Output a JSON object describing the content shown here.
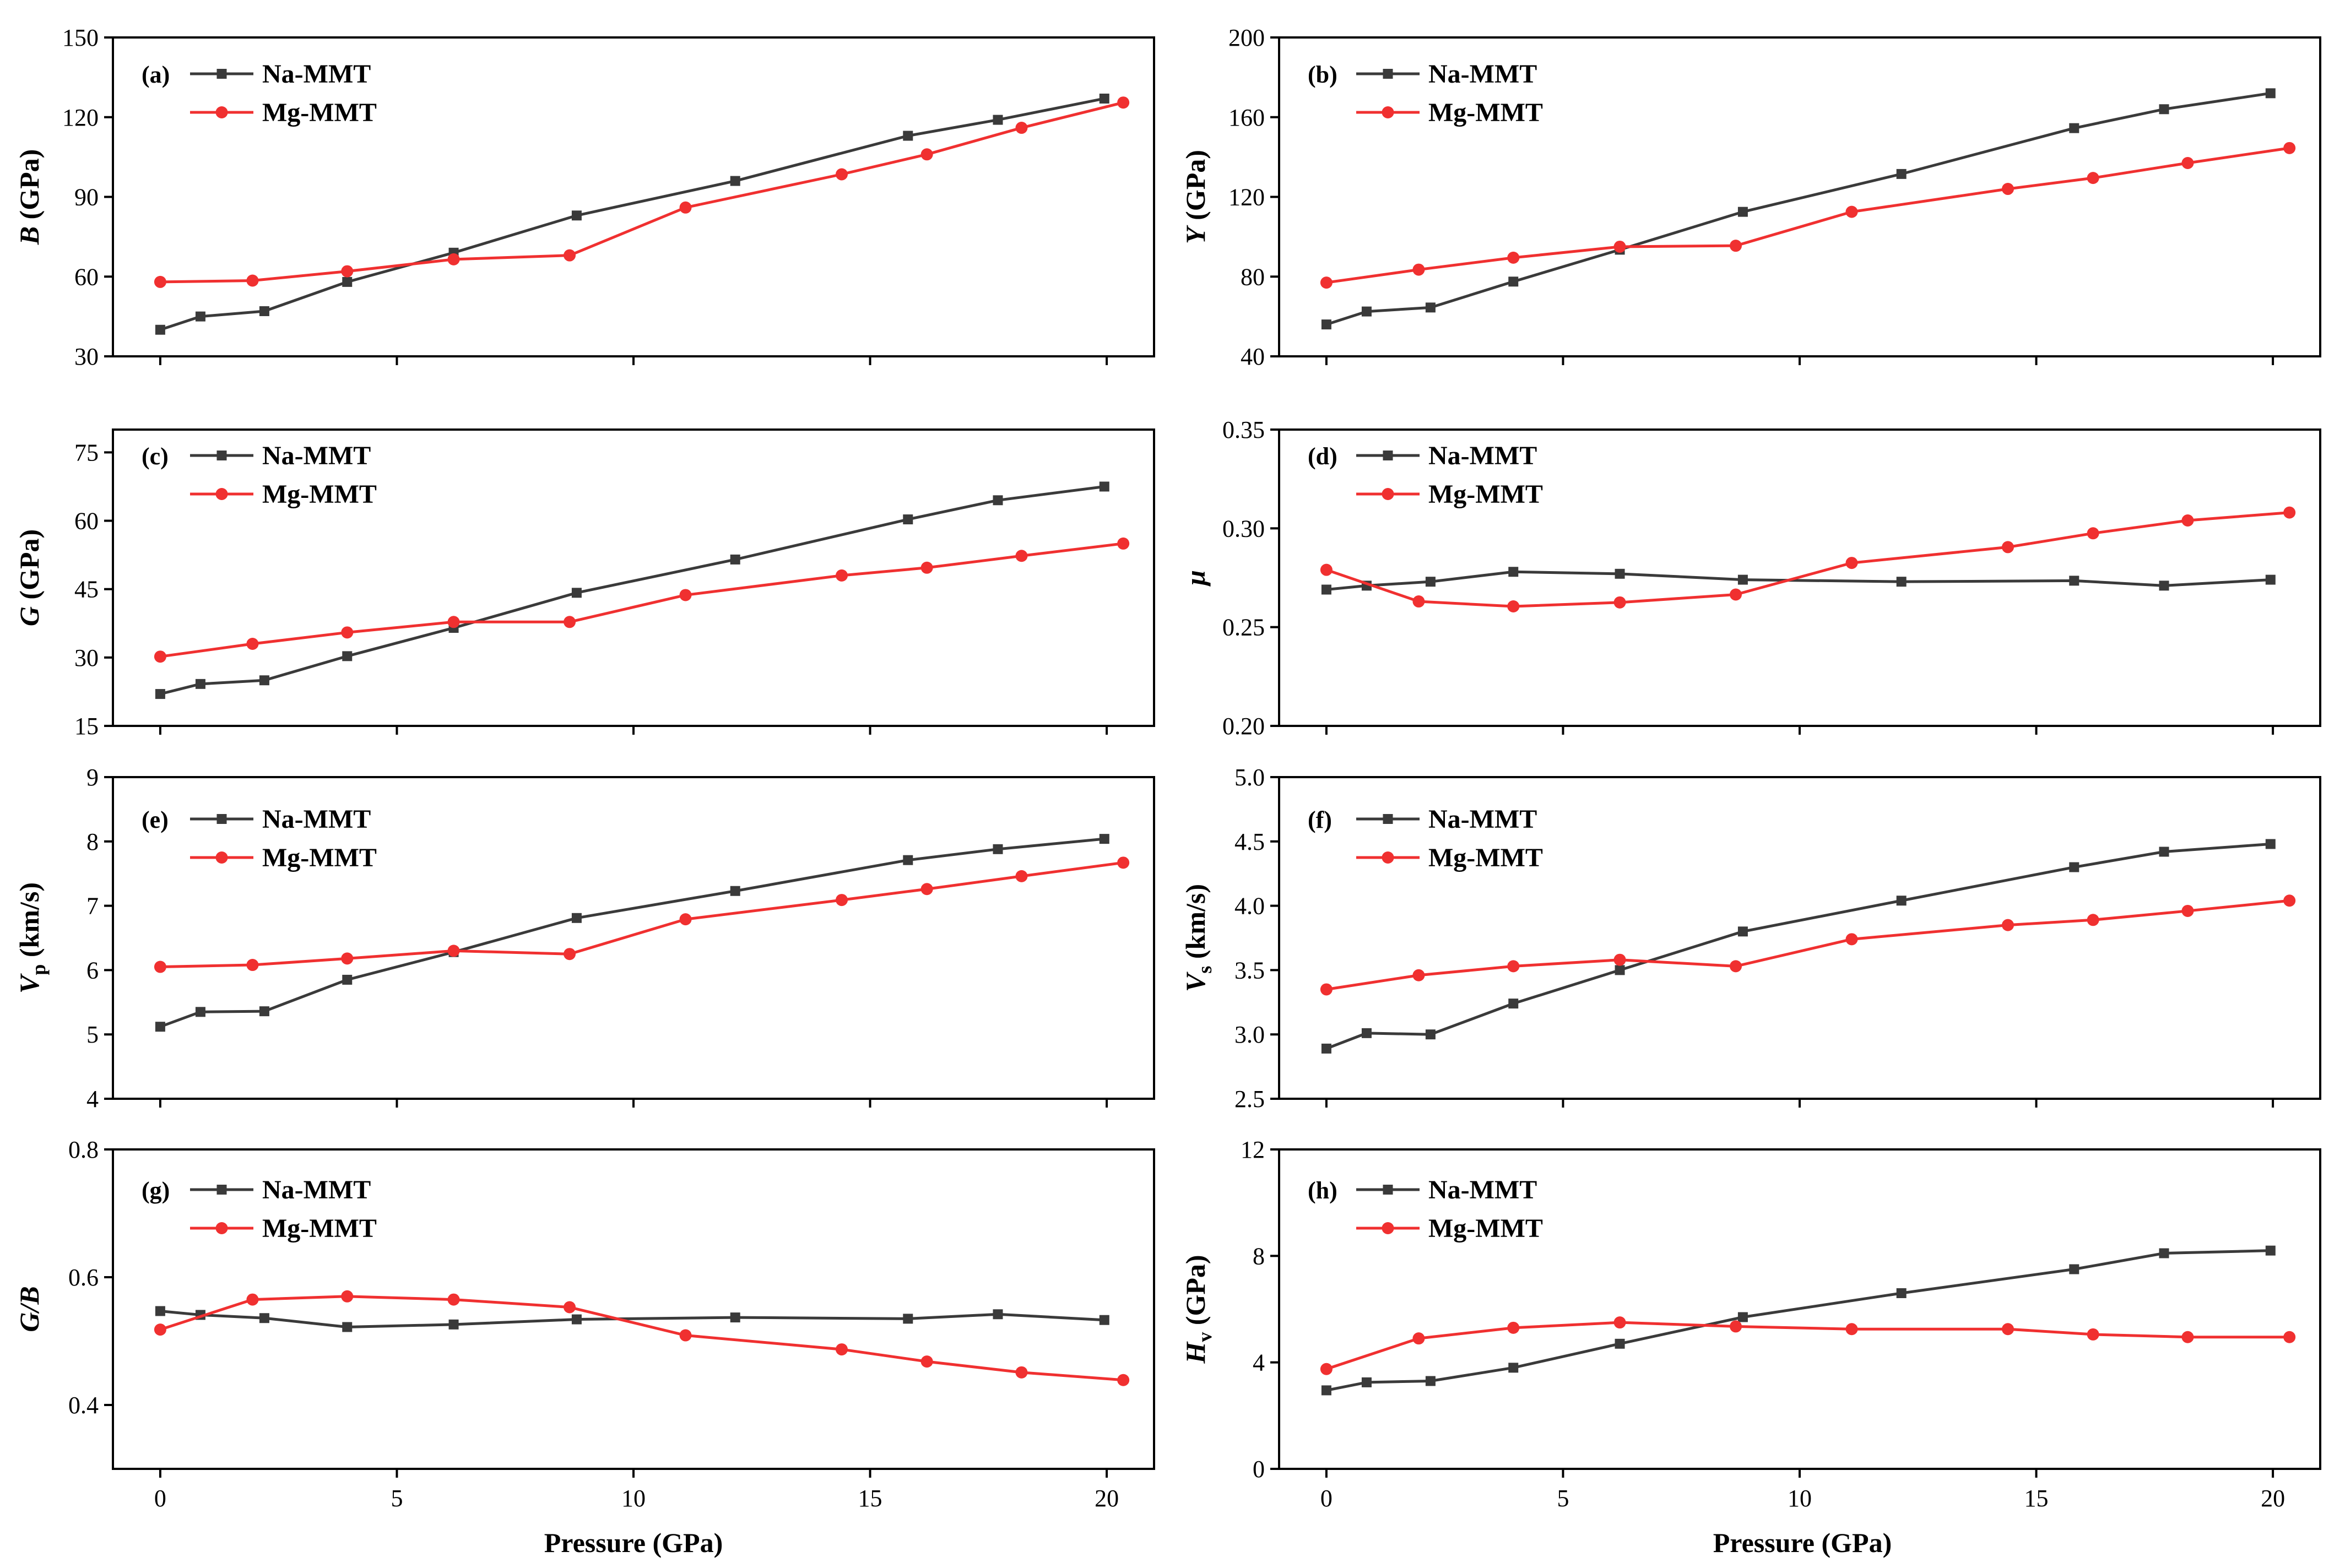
{
  "figure": {
    "x_axis_title": "Pressure (GPa)",
    "x_ticks": [
      0,
      5,
      10,
      15,
      20
    ]
  },
  "colors": {
    "Na-MMT": "#3a3a3a",
    "Mg-MMT": "#f03030"
  },
  "chart_data": [
    {
      "panel": "(a)",
      "type": "line",
      "ylabel": "B (GPa)",
      "ylabel_main": "B",
      "ylabel_sub": "",
      "ylabel_rest": " (GPa)",
      "ylim": [
        30,
        150
      ],
      "yticks": [
        30,
        60,
        90,
        120,
        150
      ],
      "tick_decimals": 0,
      "xlabel": "",
      "xlim": [
        -1,
        21
      ],
      "series": [
        {
          "name": "Na-MMT",
          "marker": "square",
          "x": [
            0,
            0.85,
            2.2,
            3.95,
            6.2,
            8.8,
            12.15,
            15.8,
            17.7,
            19.95
          ],
          "y": [
            40,
            45,
            47,
            58,
            69,
            83,
            96,
            113,
            119,
            127
          ]
        },
        {
          "name": "Mg-MMT",
          "marker": "circle",
          "x": [
            0,
            1.95,
            3.95,
            6.2,
            8.65,
            11.1,
            14.4,
            16.2,
            18.2,
            20.35
          ],
          "y": [
            58,
            58.5,
            62,
            66.5,
            68,
            86,
            98.5,
            106,
            116,
            125.5
          ]
        }
      ]
    },
    {
      "panel": "(b)",
      "type": "line",
      "ylabel": "Y (GPa)",
      "ylabel_main": "Y",
      "ylabel_sub": "",
      "ylabel_rest": " (GPa)",
      "ylim": [
        40,
        200
      ],
      "yticks": [
        40,
        80,
        120,
        160,
        200
      ],
      "tick_decimals": 0,
      "xlabel": "",
      "xlim": [
        -1,
        21
      ],
      "series": [
        {
          "name": "Na-MMT",
          "marker": "square",
          "x": [
            0,
            0.85,
            2.2,
            3.95,
            6.2,
            8.8,
            12.15,
            15.8,
            17.7,
            19.95
          ],
          "y": [
            56,
            62.5,
            64.5,
            77.5,
            93.5,
            112.5,
            131.5,
            154.5,
            164,
            172
          ]
        },
        {
          "name": "Mg-MMT",
          "marker": "circle",
          "x": [
            0,
            1.95,
            3.95,
            6.2,
            8.65,
            11.1,
            14.4,
            16.2,
            18.2,
            20.35
          ],
          "y": [
            77,
            83.5,
            89.5,
            95,
            95.5,
            112.5,
            124,
            129.5,
            137,
            144.5
          ]
        }
      ]
    },
    {
      "panel": "(c)",
      "type": "line",
      "ylabel": "G (GPa)",
      "ylabel_main": "G",
      "ylabel_sub": "",
      "ylabel_rest": " (GPa)",
      "ylim": [
        15,
        80
      ],
      "yticks": [
        15,
        30,
        45,
        60,
        75
      ],
      "tick_decimals": 0,
      "xlabel": "",
      "xlim": [
        -1,
        21
      ],
      "series": [
        {
          "name": "Na-MMT",
          "marker": "square",
          "x": [
            0,
            0.85,
            2.2,
            3.95,
            6.2,
            8.8,
            12.15,
            15.8,
            17.7,
            19.95
          ],
          "y": [
            22,
            24.2,
            25,
            30.3,
            36.5,
            44.2,
            51.5,
            60.3,
            64.5,
            67.5
          ]
        },
        {
          "name": "Mg-MMT",
          "marker": "circle",
          "x": [
            0,
            1.95,
            3.95,
            6.2,
            8.65,
            11.1,
            14.4,
            16.2,
            18.2,
            20.35
          ],
          "y": [
            30.2,
            33,
            35.5,
            37.8,
            37.8,
            43.7,
            48,
            49.7,
            52.3,
            55
          ]
        }
      ]
    },
    {
      "panel": "(d)",
      "type": "line",
      "ylabel": "μ",
      "ylabel_main": "μ",
      "ylabel_sub": "",
      "ylabel_rest": "",
      "ylim": [
        0.2,
        0.35
      ],
      "yticks": [
        0.2,
        0.25,
        0.3,
        0.35
      ],
      "tick_decimals": 2,
      "xlabel": "",
      "xlim": [
        -1,
        21
      ],
      "series": [
        {
          "name": "Na-MMT",
          "marker": "square",
          "x": [
            0,
            0.85,
            2.2,
            3.95,
            6.2,
            8.8,
            12.15,
            15.8,
            17.7,
            19.95
          ],
          "y": [
            0.269,
            0.271,
            0.273,
            0.278,
            0.277,
            0.274,
            0.273,
            0.2735,
            0.271,
            0.274
          ]
        },
        {
          "name": "Mg-MMT",
          "marker": "circle",
          "x": [
            0,
            1.95,
            3.95,
            6.2,
            8.65,
            11.1,
            14.4,
            16.2,
            18.2,
            20.35
          ],
          "y": [
            0.279,
            0.263,
            0.2605,
            0.2625,
            0.2665,
            0.2825,
            0.2905,
            0.2975,
            0.304,
            0.308
          ]
        }
      ]
    },
    {
      "panel": "(e)",
      "type": "line",
      "ylabel": "Vp (km/s)",
      "ylabel_main": "V",
      "ylabel_sub": "p",
      "ylabel_rest": " (km/s)",
      "ylim": [
        4,
        9
      ],
      "yticks": [
        4,
        5,
        6,
        7,
        8,
        9
      ],
      "tick_decimals": 0,
      "xlabel": "",
      "xlim": [
        -1,
        21
      ],
      "series": [
        {
          "name": "Na-MMT",
          "marker": "square",
          "x": [
            0,
            0.85,
            2.2,
            3.95,
            6.2,
            8.8,
            12.15,
            15.8,
            17.7,
            19.95
          ],
          "y": [
            5.12,
            5.35,
            5.36,
            5.85,
            6.28,
            6.81,
            7.23,
            7.71,
            7.88,
            8.04
          ]
        },
        {
          "name": "Mg-MMT",
          "marker": "circle",
          "x": [
            0,
            1.95,
            3.95,
            6.2,
            8.65,
            11.1,
            14.4,
            16.2,
            18.2,
            20.35
          ],
          "y": [
            6.05,
            6.08,
            6.18,
            6.3,
            6.25,
            6.79,
            7.09,
            7.26,
            7.46,
            7.67
          ]
        }
      ]
    },
    {
      "panel": "(f)",
      "type": "line",
      "ylabel": "Vs (km/s)",
      "ylabel_main": "V",
      "ylabel_sub": "s",
      "ylabel_rest": " (km/s)",
      "ylim": [
        2.5,
        5.0
      ],
      "yticks": [
        2.5,
        3.0,
        3.5,
        4.0,
        4.5,
        5.0
      ],
      "tick_decimals": 1,
      "xlabel": "",
      "xlim": [
        -1,
        21
      ],
      "series": [
        {
          "name": "Na-MMT",
          "marker": "square",
          "x": [
            0,
            0.85,
            2.2,
            3.95,
            6.2,
            8.8,
            12.15,
            15.8,
            17.7,
            19.95
          ],
          "y": [
            2.89,
            3.01,
            3.0,
            3.24,
            3.5,
            3.8,
            4.04,
            4.3,
            4.42,
            4.48
          ]
        },
        {
          "name": "Mg-MMT",
          "marker": "circle",
          "x": [
            0,
            1.95,
            3.95,
            6.2,
            8.65,
            11.1,
            14.4,
            16.2,
            18.2,
            20.35
          ],
          "y": [
            3.35,
            3.46,
            3.53,
            3.58,
            3.53,
            3.74,
            3.85,
            3.89,
            3.96,
            4.04
          ]
        }
      ]
    },
    {
      "panel": "(g)",
      "type": "line",
      "ylabel": "G/B",
      "ylabel_main": "G/B",
      "ylabel_sub": "",
      "ylabel_rest": "",
      "ylim": [
        0.3,
        0.8
      ],
      "yticks": [
        0.4,
        0.6,
        0.8
      ],
      "tick_decimals": 1,
      "xlabel": "Pressure (GPa)",
      "xlim": [
        -1,
        21
      ],
      "series": [
        {
          "name": "Na-MMT",
          "marker": "square",
          "x": [
            0,
            0.85,
            2.2,
            3.95,
            6.2,
            8.8,
            12.15,
            15.8,
            17.7,
            19.95
          ],
          "y": [
            0.547,
            0.541,
            0.536,
            0.522,
            0.526,
            0.534,
            0.537,
            0.535,
            0.542,
            0.533
          ]
        },
        {
          "name": "Mg-MMT",
          "marker": "circle",
          "x": [
            0,
            1.95,
            3.95,
            6.2,
            8.65,
            11.1,
            14.4,
            16.2,
            18.2,
            20.35
          ],
          "y": [
            0.518,
            0.565,
            0.57,
            0.565,
            0.553,
            0.509,
            0.487,
            0.468,
            0.451,
            0.439
          ]
        }
      ]
    },
    {
      "panel": "(h)",
      "type": "line",
      "ylabel": "Hv (GPa)",
      "ylabel_main": "H",
      "ylabel_sub": "v",
      "ylabel_rest": " (GPa)",
      "ylim": [
        0,
        12
      ],
      "yticks": [
        0,
        4,
        8,
        12
      ],
      "tick_decimals": 0,
      "xlabel": "Pressure (GPa)",
      "xlim": [
        -1,
        21
      ],
      "series": [
        {
          "name": "Na-MMT",
          "marker": "square",
          "x": [
            0,
            0.85,
            2.2,
            3.95,
            6.2,
            8.8,
            12.15,
            15.8,
            17.7,
            19.95
          ],
          "y": [
            2.95,
            3.25,
            3.3,
            3.8,
            4.7,
            5.7,
            6.6,
            7.5,
            8.1,
            8.2
          ]
        },
        {
          "name": "Mg-MMT",
          "marker": "circle",
          "x": [
            0,
            1.95,
            3.95,
            6.2,
            8.65,
            11.1,
            14.4,
            16.2,
            18.2,
            20.35
          ],
          "y": [
            3.75,
            4.9,
            5.3,
            5.5,
            5.35,
            5.25,
            5.25,
            5.05,
            4.95,
            4.95
          ]
        }
      ]
    }
  ]
}
